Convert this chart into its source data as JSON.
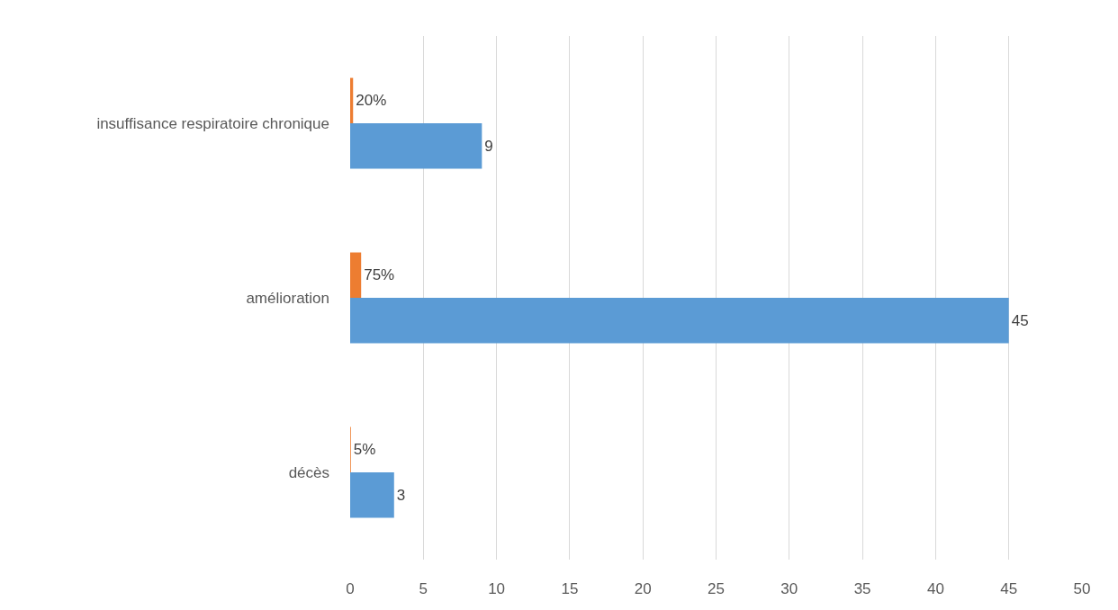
{
  "chart_data": {
    "type": "bar",
    "orientation": "horizontal",
    "categories": [
      "insuffisance respiratoire chronique",
      "amélioration",
      "décès"
    ],
    "series": [
      {
        "color": "#5b9bd5",
        "values": [
          9,
          45,
          3
        ],
        "value_labels": [
          "9",
          "45",
          "3"
        ]
      },
      {
        "color": "#ed7d31",
        "values": [
          0.2,
          0.75,
          0.05
        ],
        "value_labels": [
          "20%",
          "75%",
          "5%"
        ]
      }
    ],
    "xlim": [
      0,
      50
    ],
    "xticks": [
      0,
      5,
      10,
      15,
      20,
      25,
      30,
      35,
      40,
      45,
      50
    ],
    "grid": "x",
    "legend": false
  }
}
